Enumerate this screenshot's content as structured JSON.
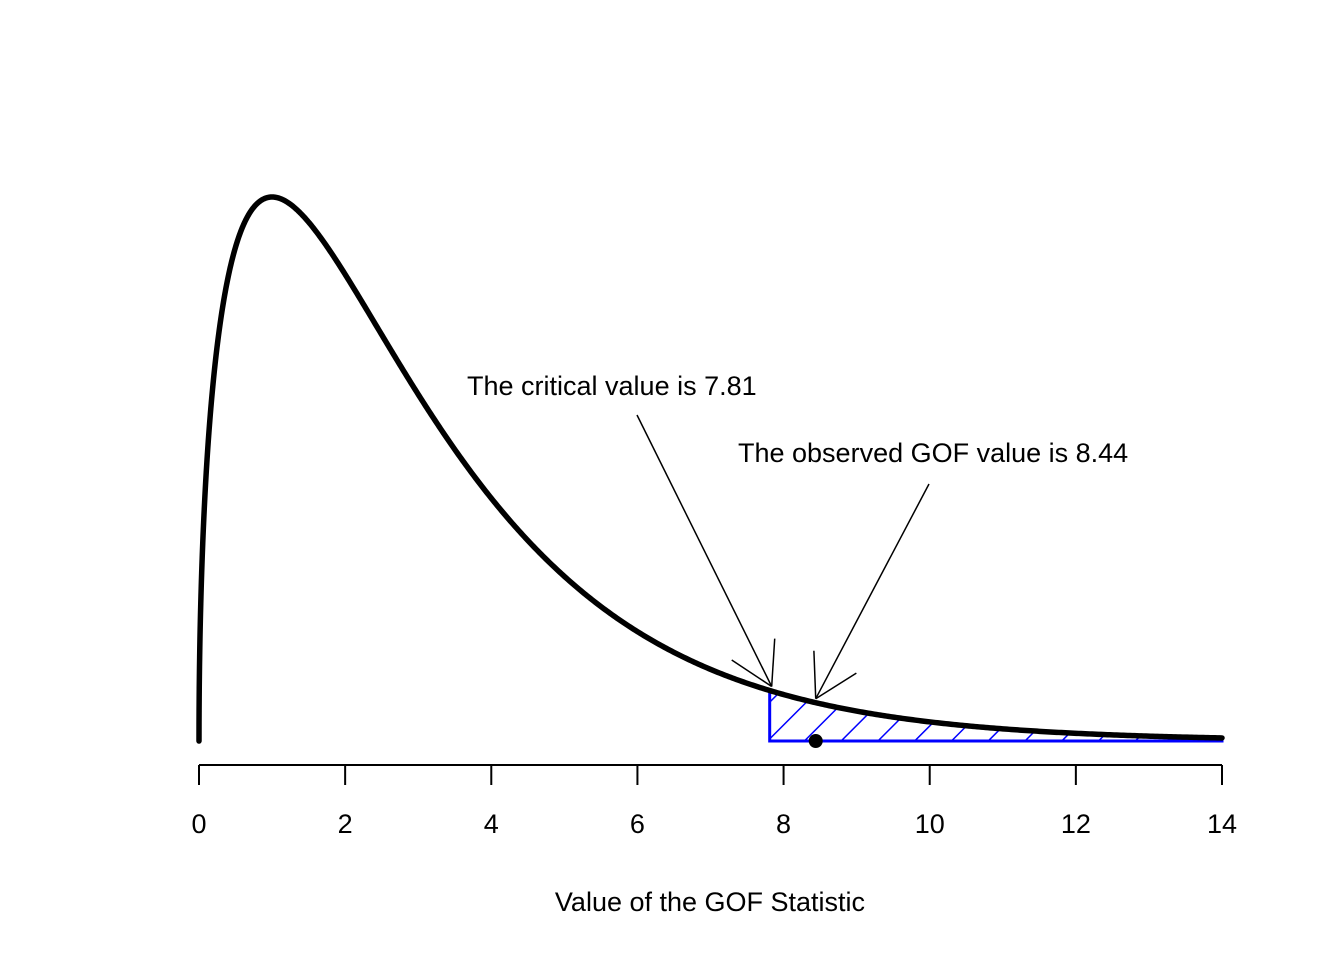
{
  "chart_data": {
    "type": "line",
    "title": "",
    "xlabel": "Value of the GOF Statistic",
    "ylabel": "",
    "xlim": [
      0,
      14
    ],
    "x_ticks": [
      0,
      2,
      4,
      6,
      8,
      10,
      12,
      14
    ],
    "x_tick_labels": [
      "0",
      "2",
      "4",
      "6",
      "8",
      "10",
      "12",
      "14"
    ],
    "y_axis_shown": false,
    "grid": false,
    "legend": "none",
    "series": [
      {
        "type": "density-curve",
        "distribution": "chi-squared",
        "df": 3,
        "x_range": [
          0,
          14
        ],
        "color": "#000000"
      }
    ],
    "shaded_region": {
      "x_from": 7.81,
      "x_to": 14,
      "fill": "hatched",
      "color": "#0000ff"
    },
    "points": [
      {
        "x": 8.44,
        "y": 0
      }
    ],
    "annotations": [
      {
        "text": "The critical value is 7.81",
        "arrow_to_x": 7.81
      },
      {
        "text": "The observed GOF value is 8.44",
        "arrow_to_x": 8.44
      }
    ]
  }
}
